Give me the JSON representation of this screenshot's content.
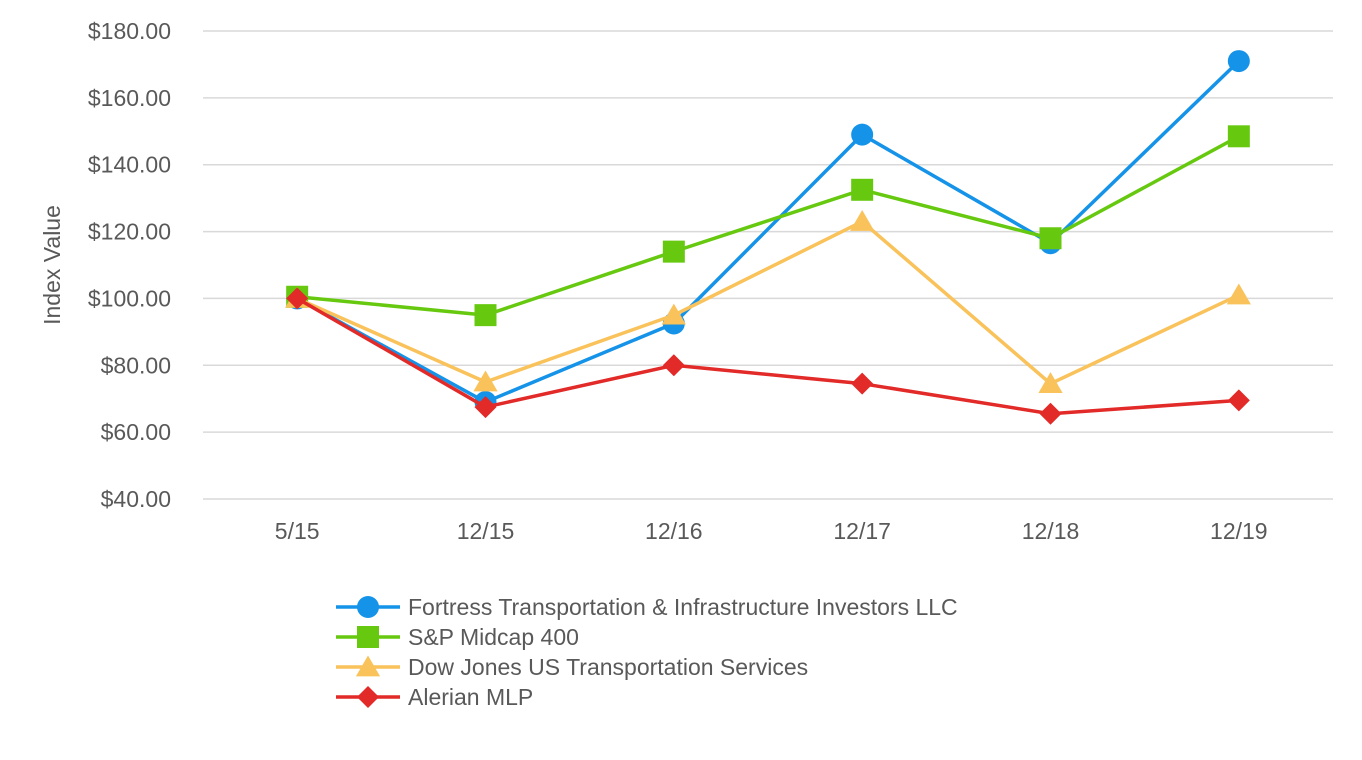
{
  "chart_data": {
    "type": "line",
    "ylabel": "Index Value",
    "xlabel": "",
    "categories": [
      "5/15",
      "12/15",
      "12/16",
      "12/17",
      "12/18",
      "12/19"
    ],
    "ylim": [
      40,
      180
    ],
    "yticks": [
      40,
      60,
      80,
      100,
      120,
      140,
      160,
      180
    ],
    "ytick_labels": [
      "$40.00",
      "$60.00",
      "$80.00",
      "$100.00",
      "$120.00",
      "$140.00",
      "$160.00",
      "$180.00"
    ],
    "grid": true,
    "legend_position": "bottom",
    "series": [
      {
        "name": "Fortress Transportation & Infrastructure Investors LLC",
        "color": "#1593e8",
        "marker": "circle",
        "values": [
          100,
          69,
          92.5,
          149,
          116.5,
          171
        ]
      },
      {
        "name": "S&P Midcap 400",
        "color": "#66c910",
        "marker": "square",
        "values": [
          100.5,
          95,
          114,
          132.5,
          118,
          148.5
        ]
      },
      {
        "name": "Dow Jones US Transportation Services",
        "color": "#f9c25a",
        "marker": "triangle",
        "values": [
          100,
          75,
          95,
          123,
          74.5,
          101
        ]
      },
      {
        "name": "Alerian MLP",
        "color": "#e22a28",
        "marker": "diamond",
        "values": [
          100,
          67.5,
          80,
          74.5,
          65.5,
          69.5
        ]
      }
    ]
  }
}
